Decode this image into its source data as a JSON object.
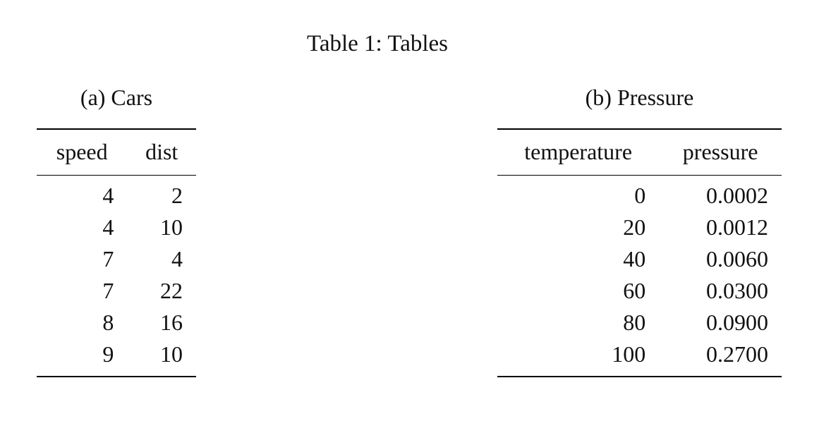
{
  "title": "Table 1: Tables",
  "tables": [
    {
      "caption": "(a) Cars",
      "headers": [
        "speed",
        "dist"
      ],
      "rows": [
        [
          "4",
          "2"
        ],
        [
          "4",
          "10"
        ],
        [
          "7",
          "4"
        ],
        [
          "7",
          "22"
        ],
        [
          "8",
          "16"
        ],
        [
          "9",
          "10"
        ]
      ]
    },
    {
      "caption": "(b) Pressure",
      "headers": [
        "temperature",
        "pressure"
      ],
      "rows": [
        [
          "0",
          "0.0002"
        ],
        [
          "20",
          "0.0012"
        ],
        [
          "40",
          "0.0060"
        ],
        [
          "60",
          "0.0300"
        ],
        [
          "80",
          "0.0900"
        ],
        [
          "100",
          "0.2700"
        ]
      ]
    }
  ]
}
